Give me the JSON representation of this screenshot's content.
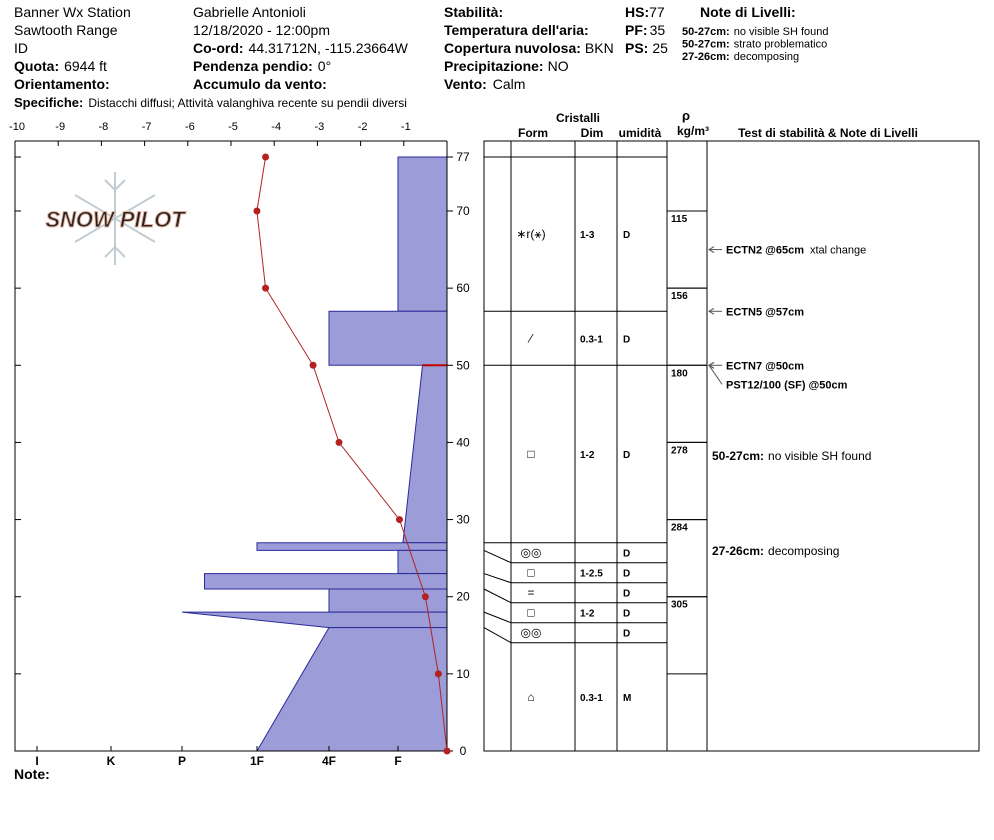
{
  "header": {
    "station": "Banner Wx Station",
    "range": "Sawtooth Range",
    "id": "ID",
    "elevation": {
      "label": "Quota:",
      "value": "6944 ft"
    },
    "aspect": {
      "label": "Orientamento:"
    },
    "specifics": {
      "label": "Specifiche:",
      "value": "Distacchi diffusi; Attività valanghiva recente su pendii diversi"
    },
    "observer": "Gabrielle Antonioli",
    "datetime": "12/18/2020 - 12:00pm",
    "coords": {
      "label": "Co-ord:",
      "value": "44.31712N, -115.23664W"
    },
    "slope": {
      "label": "Pendenza pendio:",
      "value": "0°"
    },
    "wind_loading": {
      "label": "Accumulo da vento:"
    },
    "stability": {
      "label": "Stabilità:"
    },
    "air_temp": {
      "label": "Temperatura dell'aria:"
    },
    "sky": {
      "label": "Copertura nuvolosa:",
      "value": "BKN"
    },
    "precip": {
      "label": "Precipitazione:",
      "value": "NO"
    },
    "wind": {
      "label": "Vento:",
      "value": "Calm"
    },
    "hs": {
      "label": "HS:",
      "value": "77"
    },
    "pf": {
      "label": "PF:",
      "value": "35"
    },
    "ps": {
      "label": "PS:",
      "value": "25"
    },
    "layer_notes_title": "Note di Livelli:",
    "layer_notes": [
      {
        "range": "50-27cm:",
        "text": "no visible SH found"
      },
      {
        "range": "50-27cm:",
        "text": "strato problematico"
      },
      {
        "range": "27-26cm:",
        "text": "decomposing"
      }
    ]
  },
  "footer": {
    "note_label": "Note:"
  },
  "logo": "SNOW PILOT",
  "table": {
    "cristalli": "Cristalli",
    "form": "Form",
    "dim": "Dim",
    "moisture": "umidità",
    "rho": "ρ",
    "density_unit": "kg/m³",
    "tests_title": "Test di stabilità & Note di Livelli"
  },
  "chart_data": {
    "type": "snow_profile",
    "xlim": [
      -10,
      0
    ],
    "xticks": [
      -10,
      -9,
      -8,
      -7,
      -6,
      -5,
      -4,
      -3,
      -2,
      -1
    ],
    "ylim": [
      0,
      77
    ],
    "yticks": [
      0,
      10,
      20,
      30,
      40,
      50,
      60,
      70,
      77
    ],
    "hardness_ticks": [
      {
        "value": 6,
        "label": "I"
      },
      {
        "value": 5,
        "label": "K"
      },
      {
        "value": 4,
        "label": "P"
      },
      {
        "value": 3,
        "label": "1F"
      },
      {
        "value": 2,
        "label": "4F"
      },
      {
        "value": 1,
        "label": "F"
      }
    ],
    "hardness_color": "#9c9cd8",
    "temperature": {
      "color": "#b22222",
      "heights": [
        77,
        70,
        60,
        50,
        40,
        30,
        20,
        10,
        0
      ],
      "values": [
        -4.2,
        -4.4,
        -4.2,
        -3.1,
        -2.5,
        -1.1,
        -0.5,
        -0.2,
        0
      ]
    },
    "critical_layer": 50,
    "layers": [
      {
        "top": 77,
        "bottom": 57,
        "hardness_top": 1,
        "hardness_bottom": 1,
        "form": "∗r(⚹)",
        "size": "1-3",
        "moisture": "D"
      },
      {
        "top": 57,
        "bottom": 50,
        "hardness_top": 2,
        "hardness_bottom": 2,
        "form": "⁄",
        "size": "0.3-1",
        "moisture": "D"
      },
      {
        "top": 50,
        "bottom": 27,
        "hardness_top": 0.5,
        "hardness_bottom": 0.9,
        "form": "□",
        "size": "1-2",
        "moisture": "D"
      },
      {
        "top": 27,
        "bottom": 26,
        "hardness_top": 3,
        "hardness_bottom": 3,
        "form": "◎◎",
        "moisture": "D"
      },
      {
        "top": 26,
        "bottom": 23,
        "hardness_top": 1,
        "hardness_bottom": 1,
        "form": "□",
        "size": "1-2.5",
        "moisture": "D"
      },
      {
        "top": 23,
        "bottom": 21,
        "hardness_top": 3.7,
        "hardness_bottom": 3.7,
        "form": "=",
        "moisture": "D"
      },
      {
        "top": 21,
        "bottom": 18,
        "hardness_top": 2,
        "hardness_bottom": 2,
        "form": "□",
        "size": "1-2",
        "moisture": "D"
      },
      {
        "top": 18,
        "bottom": 16,
        "hardness_top": 4,
        "hardness_bottom": 2,
        "form": "◎◎",
        "moisture": "D"
      },
      {
        "top": 16,
        "bottom": 0,
        "hardness_top": 2,
        "hardness_bottom": 3,
        "form": "⌂",
        "size": "0.3-1",
        "moisture": "M"
      }
    ],
    "density": [
      {
        "top": 70,
        "bottom": 60,
        "value": 115
      },
      {
        "top": 60,
        "bottom": 50,
        "value": 156
      },
      {
        "top": 50,
        "bottom": 40,
        "value": 180
      },
      {
        "top": 40,
        "bottom": 30,
        "value": 278
      },
      {
        "top": 30,
        "bottom": 20,
        "value": 284
      },
      {
        "top": 20,
        "bottom": 10,
        "value": 305
      }
    ],
    "tests": [
      {
        "name": "ECTN2 @65cm",
        "note": "xtal change",
        "height": 65
      },
      {
        "name": "ECTN5 @57cm",
        "height": 57
      },
      {
        "name": "ECTN7 @50cm",
        "height": 50
      },
      {
        "name": "PST12/100 (SF) @50cm",
        "height": 50
      }
    ],
    "layer_notes": [
      {
        "range": "50-27cm:",
        "text": "no visible SH found"
      },
      {
        "range": "27-26cm:",
        "text": "decomposing"
      }
    ]
  }
}
